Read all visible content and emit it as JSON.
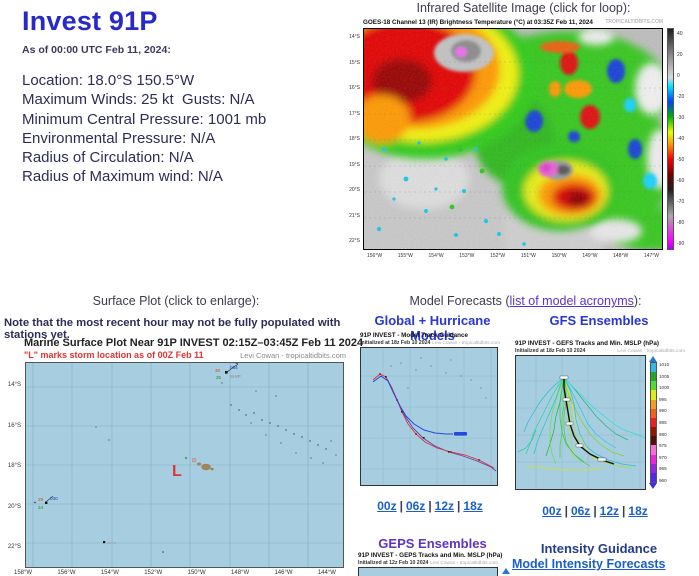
{
  "storm": {
    "title": "Invest 91P",
    "as_of": "As of 00:00 UTC Feb 11, 2024:",
    "details": [
      "Location: 18.0°S 150.5°W",
      "Maximum Winds: 25 kt  Gusts: N/A",
      "Minimum Central Pressure: 1001 mb",
      "Environmental Pressure: N/A",
      "Radius of Circulation: N/A",
      "Radius of Maximum wind: N/A"
    ]
  },
  "satellite": {
    "header": "Infrared Satellite Image (click for loop):",
    "image_title": "GOES-18 Channel 13 (IR) Brightness Temperature (°C) at 03:35Z Feb 11, 2024",
    "credit": "TROPICALTIDBITS.COM",
    "lat_labels": [
      "14°S",
      "15°S",
      "16°S",
      "17°S",
      "18°S",
      "19°S",
      "20°S",
      "21°S",
      "22°S"
    ],
    "lon_labels": [
      "156°W",
      "155°W",
      "154°W",
      "153°W",
      "152°W",
      "151°W",
      "150°W",
      "149°W",
      "148°W",
      "147°W"
    ],
    "colorbar_labels": [
      "40",
      "20",
      "0",
      "-20",
      "-30",
      "-40",
      "-50",
      "-60",
      "-70",
      "-80",
      "-90"
    ]
  },
  "surface_plot": {
    "header": "Surface Plot (click to enlarge):",
    "note": "Note that the most recent hour may not be fully populated with stations yet.",
    "plot_title": "Marine Surface Plot Near 91P INVEST 02:15Z–03:45Z Feb 11 2024",
    "subtitle": "\"L\" marks storm location as of 00Z Feb 11",
    "credit": "Levi Cowan - tropicaltidbits.com",
    "storm_marker": "L",
    "lat_labels": [
      "14°S",
      "16°S",
      "18°S",
      "20°S",
      "22°S"
    ],
    "lon_labels": [
      "158°W",
      "156°W",
      "154°W",
      "152°W",
      "150°W",
      "148°W",
      "146°W",
      "144°W"
    ],
    "stations": [
      {
        "temp": "30",
        "pressure": "064",
        "dewpoint": "25",
        "id": "SHIP"
      },
      {
        "temp": "29",
        "pressure": "030",
        "dewpoint": "24",
        "id": ""
      }
    ]
  },
  "models": {
    "header_prefix": "Model Forecasts (",
    "header_link": "list of model acronyms",
    "header_suffix": "):",
    "global_hurricane": {
      "title": "Global + Hurricane Models",
      "plot_title": "91P INVEST - Model Track Guidance",
      "init": "Initialized at 18z Feb 10 2024",
      "credit": "Levi Cowan - tropicaltidbits.com",
      "links": [
        "00z",
        "06z",
        "12z",
        "18z"
      ]
    },
    "gfs_ensembles": {
      "title": "GFS Ensembles",
      "plot_title": "91P INVEST - GEFS Tracks and Min. MSLP (hPa)",
      "init": "Initialized at 18z Feb 10 2024",
      "credit": "Levi Cowan - tropicaltidbits.com",
      "links": [
        "00z",
        "06z",
        "12z",
        "18z"
      ],
      "colorbar_labels": [
        "1010",
        "1005",
        "1000",
        "995",
        "990",
        "985",
        "980",
        "975",
        "970",
        "965",
        "960"
      ]
    },
    "geps_ensembles": {
      "title": "GEPS Ensembles",
      "plot_title": "91P INVEST - GEPS Tracks and Min. MSLP (hPa)",
      "init": "Initialized at 12z Feb 10 2024",
      "credit": "Levi Cowan - tropicaltidbits.com"
    },
    "intensity": {
      "title": "Intensity Guidance",
      "link": "Model Intensity Forecasts"
    }
  },
  "colors": {
    "accent_blue": "#2929c8",
    "link_blue": "#1a5fc8",
    "link_purple": "#5c33c8",
    "map_ocean": "#a6cee0",
    "storm_marker_red": "#e23333"
  }
}
